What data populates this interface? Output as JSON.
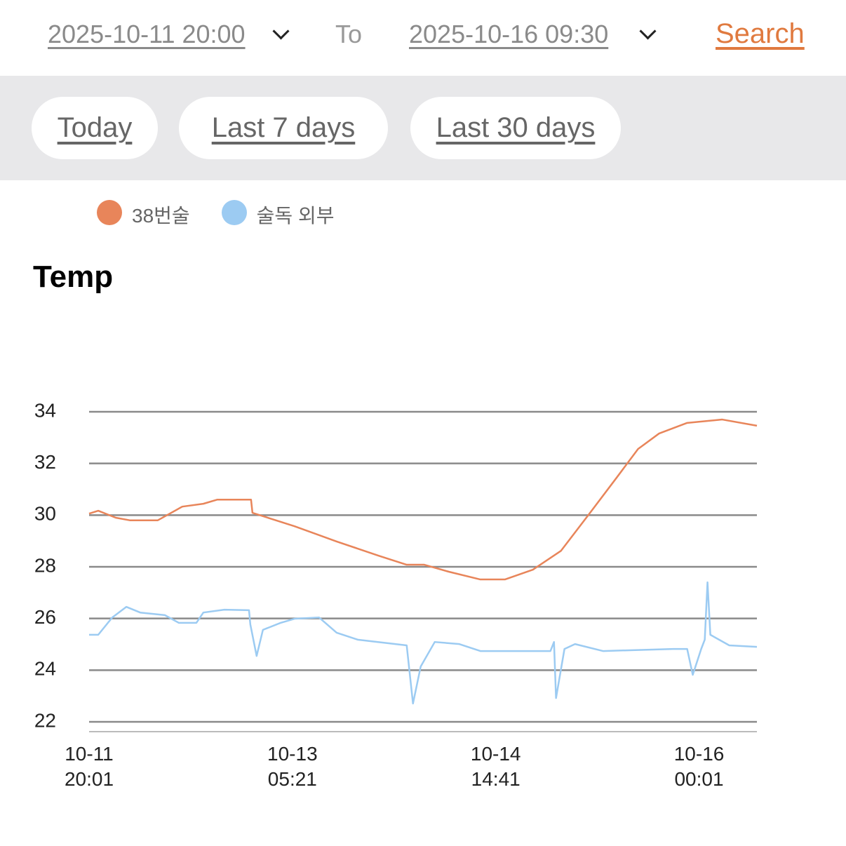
{
  "header": {
    "from": "2025-10-11 20:00",
    "to_label": "To",
    "to": "2025-10-16 09:30",
    "search": "Search"
  },
  "presets": [
    "Today",
    "Last 7 days",
    "Last 30 days"
  ],
  "chart_data": {
    "type": "line",
    "title": "Temp",
    "xlim": [
      "10-11 20:01",
      "10-16 09:30"
    ],
    "xticks": [
      "10-11 20:01",
      "10-13 05:21",
      "10-14 14:41",
      "10-16 00:01"
    ],
    "ylim": [
      22,
      34
    ],
    "yticks": [
      22,
      24,
      26,
      28,
      30,
      32,
      34
    ],
    "grid": true,
    "series": [
      {
        "name": "38번술",
        "color": "#e8855a",
        "x": [
          "10-11 20:01",
          "10-11 21:31",
          "10-12 00:23",
          "10-12 02:41",
          "10-12 07:17",
          "10-12 11:18",
          "10-12 14:45",
          "10-12 17:03",
          "10-12 22:34",
          "10-12 22:48",
          "10-13 05:42",
          "10-13 12:36",
          "10-13 19:29",
          "10-14 00:05",
          "10-14 02:58",
          "10-14 06:59",
          "10-14 12:10",
          "10-14 16:11",
          "10-14 20:47",
          "10-15 01:23",
          "10-15 05:59",
          "10-15 10:34",
          "10-15 14:01",
          "10-15 17:28",
          "10-15 22:04",
          "10-16 03:49",
          "10-16 09:30"
        ],
        "values": [
          30.06,
          30.17,
          29.9,
          29.8,
          29.8,
          30.33,
          30.44,
          30.6,
          30.6,
          30.09,
          29.57,
          28.98,
          28.43,
          28.08,
          28.08,
          27.81,
          27.51,
          27.51,
          27.89,
          28.62,
          30.04,
          31.47,
          32.56,
          33.16,
          33.57,
          33.7,
          33.46
        ]
      },
      {
        "name": "술독 외부",
        "color": "#9ccbf2",
        "x": [
          "10-11 20:01",
          "10-11 21:31",
          "10-11 23:49",
          "10-12 02:07",
          "10-12 04:24",
          "10-12 08:26",
          "10-12 10:44",
          "10-12 13:36",
          "10-12 14:45",
          "10-12 18:12",
          "10-12 22:14",
          "10-12 22:27",
          "10-12 23:29",
          "10-13 00:31",
          "10-13 03:24",
          "10-13 05:42",
          "10-13 09:43",
          "10-13 12:36",
          "10-13 16:03",
          "10-14 00:05",
          "10-14 01:07",
          "10-14 02:23",
          "10-14 04:41",
          "10-14 08:43",
          "10-14 12:10",
          "10-14 23:39",
          "10-15 00:14",
          "10-15 00:34",
          "10-15 01:57",
          "10-15 03:41",
          "10-15 08:16",
          "10-15 19:46",
          "10-15 22:04",
          "10-15 22:59",
          "10-16 00:22",
          "10-16 00:57",
          "10-16 01:24",
          "10-16 01:52",
          "10-16 04:58",
          "10-16 09:30"
        ],
        "values": [
          25.37,
          25.37,
          26.04,
          26.45,
          26.23,
          26.13,
          25.83,
          25.83,
          26.23,
          26.34,
          26.32,
          25.77,
          24.55,
          25.56,
          25.83,
          25.99,
          26.04,
          25.45,
          25.18,
          24.96,
          22.71,
          24.14,
          25.09,
          25.01,
          24.74,
          24.74,
          25.09,
          22.92,
          24.82,
          25.01,
          24.74,
          24.82,
          24.82,
          23.82,
          24.82,
          25.18,
          27.4,
          25.37,
          24.96,
          24.9
        ]
      }
    ]
  }
}
